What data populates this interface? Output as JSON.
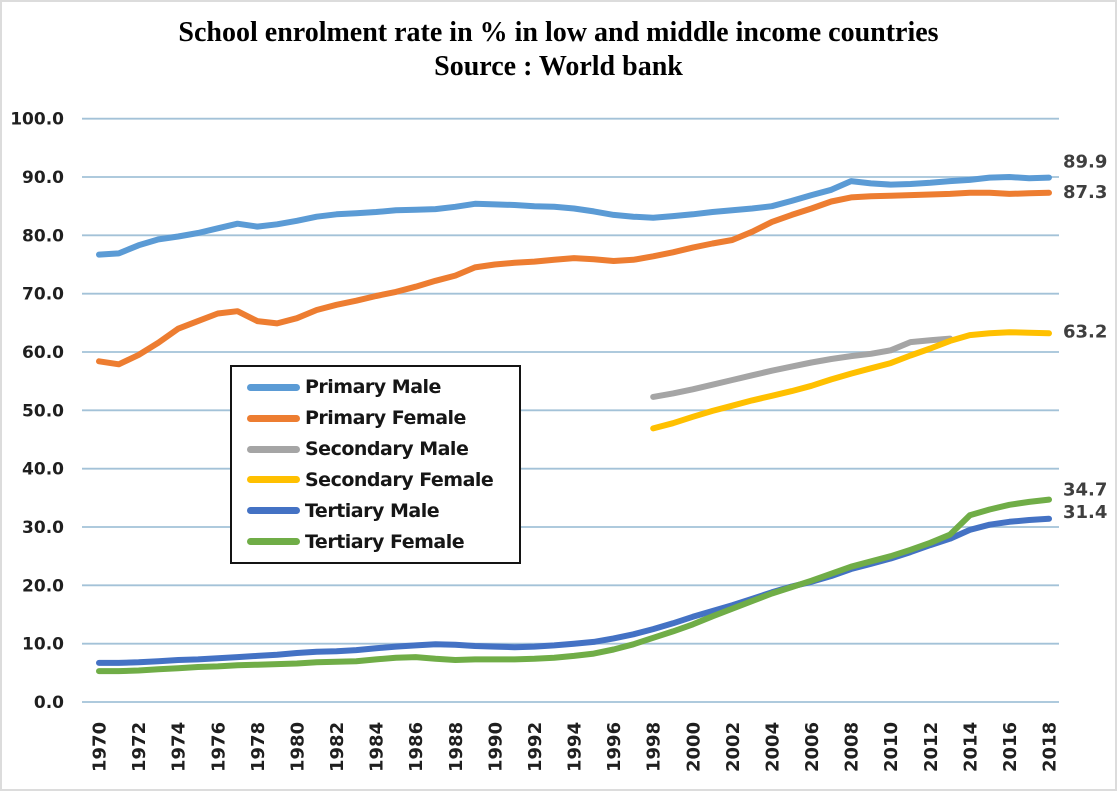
{
  "page": {
    "background": "#ffffff",
    "frame_color": "#dcdcdc"
  },
  "chart_data": {
    "type": "line",
    "title": "School enrolment rate in % in low and middle income countries",
    "subtitle": "Source : World bank",
    "xlabel": "",
    "ylabel": "",
    "xlim": [
      1970,
      2018
    ],
    "ylim": [
      0,
      100
    ],
    "grid": true,
    "gridline_color": "#a3c2d8",
    "tick_color": "#1f1f1f",
    "end_label_color": "#3f3f3f",
    "legend_position": "inside-upper-left",
    "x_tick_rotation": 90,
    "y_ticks": [
      "100.0",
      "90.0",
      "80.0",
      "70.0",
      "60.0",
      "50.0",
      "40.0",
      "30.0",
      "20.0",
      "10.0",
      "0.0"
    ],
    "x_ticks": [
      "1970",
      "1972",
      "1974",
      "1976",
      "1978",
      "1980",
      "1982",
      "1984",
      "1986",
      "1988",
      "1990",
      "1992",
      "1994",
      "1996",
      "1998",
      "2000",
      "2002",
      "2004",
      "2006",
      "2008",
      "2010",
      "2012",
      "2014",
      "2016",
      "2018"
    ],
    "series": [
      {
        "name": "Primary Male",
        "color": "#5B9BD5",
        "start_year": 1970,
        "end_label": "89.9",
        "values": [
          76.7,
          76.9,
          78.3,
          79.3,
          79.8,
          80.4,
          81.2,
          82.0,
          81.5,
          81.9,
          82.5,
          83.2,
          83.6,
          83.8,
          84.0,
          84.3,
          84.4,
          84.5,
          84.9,
          85.4,
          85.3,
          85.2,
          85.0,
          84.9,
          84.6,
          84.1,
          83.5,
          83.2,
          83.0,
          83.3,
          83.6,
          84.0,
          84.3,
          84.6,
          85.0,
          85.9,
          86.9,
          87.8,
          89.3,
          88.9,
          88.7,
          88.8,
          89.0,
          89.3,
          89.5,
          89.9,
          90.0,
          89.8,
          89.9
        ]
      },
      {
        "name": "Primary Female",
        "color": "#ED7D31",
        "start_year": 1970,
        "end_label": "87.3",
        "values": [
          58.4,
          57.9,
          59.5,
          61.6,
          64.0,
          65.3,
          66.6,
          67.0,
          65.3,
          64.9,
          65.8,
          67.2,
          68.1,
          68.8,
          69.6,
          70.3,
          71.2,
          72.2,
          73.1,
          74.5,
          75.0,
          75.3,
          75.5,
          75.8,
          76.1,
          75.9,
          75.6,
          75.8,
          76.4,
          77.1,
          77.9,
          78.6,
          79.2,
          80.6,
          82.3,
          83.5,
          84.6,
          85.8,
          86.5,
          86.7,
          86.8,
          86.9,
          87.0,
          87.1,
          87.3,
          87.3,
          87.1,
          87.2,
          87.3
        ]
      },
      {
        "name": "Secondary Male",
        "color": "#A5A5A5",
        "start_year": 1998,
        "end_label": "",
        "values": [
          52.3,
          52.9,
          53.6,
          54.4,
          55.2,
          56.0,
          56.8,
          57.5,
          58.2,
          58.8,
          59.3,
          59.7,
          60.3,
          61.7,
          62.0,
          62.3
        ]
      },
      {
        "name": "Secondary Female",
        "color": "#FFC000",
        "start_year": 1998,
        "end_label": "63.2",
        "values": [
          46.9,
          47.8,
          48.9,
          49.9,
          50.8,
          51.7,
          52.5,
          53.3,
          54.2,
          55.3,
          56.3,
          57.2,
          58.1,
          59.4,
          60.6,
          61.9,
          62.9,
          63.2,
          63.4,
          63.3,
          63.2
        ]
      },
      {
        "name": "Tertiary Male",
        "color": "#4472C4",
        "start_year": 1970,
        "end_label": "31.4",
        "values": [
          6.7,
          6.7,
          6.8,
          7.0,
          7.2,
          7.3,
          7.5,
          7.7,
          7.9,
          8.1,
          8.4,
          8.6,
          8.7,
          8.9,
          9.2,
          9.5,
          9.7,
          9.9,
          9.8,
          9.6,
          9.5,
          9.4,
          9.5,
          9.7,
          10.0,
          10.3,
          10.9,
          11.6,
          12.5,
          13.5,
          14.6,
          15.6,
          16.6,
          17.7,
          18.8,
          19.8,
          20.6,
          21.6,
          22.8,
          23.7,
          24.6,
          25.7,
          26.9,
          28.0,
          29.5,
          30.4,
          30.9,
          31.2,
          31.4
        ]
      },
      {
        "name": "Tertiary Female",
        "color": "#70AD47",
        "start_year": 1970,
        "end_label": "34.7",
        "values": [
          5.3,
          5.3,
          5.4,
          5.6,
          5.8,
          6.0,
          6.1,
          6.3,
          6.4,
          6.5,
          6.6,
          6.8,
          6.9,
          7.0,
          7.3,
          7.6,
          7.7,
          7.4,
          7.2,
          7.3,
          7.3,
          7.3,
          7.4,
          7.6,
          7.9,
          8.3,
          9.0,
          9.9,
          11.0,
          12.1,
          13.3,
          14.7,
          16.0,
          17.3,
          18.6,
          19.7,
          20.8,
          22.0,
          23.2,
          24.1,
          25.0,
          26.1,
          27.3,
          28.7,
          32.0,
          33.0,
          33.8,
          34.3,
          34.7
        ]
      }
    ]
  }
}
